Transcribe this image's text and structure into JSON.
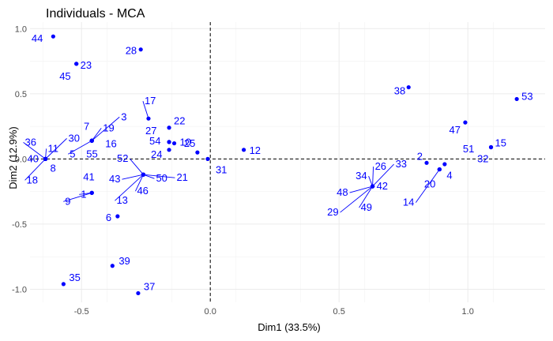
{
  "chart_data": {
    "type": "scatter",
    "title": "Individuals - MCA",
    "xlabel": "Dim1 (33.5%)",
    "ylabel": "Dim2 (12.9%)",
    "xlim": [
      -0.7,
      1.3
    ],
    "ylim": [
      -1.1,
      1.05
    ],
    "xticks": [
      -0.5,
      0.0,
      0.5,
      1.0
    ],
    "xtick_labels": [
      "-0.5",
      "0.0",
      "0.5",
      "1.0"
    ],
    "yticks": [
      -1.0,
      -0.5,
      0.0,
      0.5,
      1.0
    ],
    "ytick_labels": [
      "-1.0",
      "-0.5",
      "0.0",
      "0.5",
      "1.0"
    ],
    "reference_lines": {
      "x": 0,
      "y": 0
    },
    "grid": true,
    "point_color": "#0000ff",
    "points": [
      {
        "label": "44",
        "x": -0.61,
        "y": 0.94
      },
      {
        "label": "45",
        "x": -0.52,
        "y": 0.73
      },
      {
        "label": "23",
        "x": -0.52,
        "y": 0.73
      },
      {
        "label": "28",
        "x": -0.27,
        "y": 0.84
      },
      {
        "label": "38",
        "x": 0.77,
        "y": 0.55
      },
      {
        "label": "53",
        "x": 1.19,
        "y": 0.46
      },
      {
        "label": "47",
        "x": 0.99,
        "y": 0.28
      },
      {
        "label": "15",
        "x": 1.09,
        "y": 0.09
      },
      {
        "label": "32",
        "x": 1.09,
        "y": 0.09
      },
      {
        "label": "51",
        "x": 0.91,
        "y": -0.04
      },
      {
        "label": "2",
        "x": 0.84,
        "y": -0.03
      },
      {
        "label": "4",
        "x": 0.89,
        "y": -0.08
      },
      {
        "label": "20",
        "x": 0.89,
        "y": -0.08
      },
      {
        "label": "14",
        "x": 0.89,
        "y": -0.08
      },
      {
        "label": "26",
        "x": 0.63,
        "y": -0.21
      },
      {
        "label": "33",
        "x": 0.63,
        "y": -0.21
      },
      {
        "label": "34",
        "x": 0.63,
        "y": -0.21
      },
      {
        "label": "42",
        "x": 0.63,
        "y": -0.21
      },
      {
        "label": "48",
        "x": 0.63,
        "y": -0.21
      },
      {
        "label": "49",
        "x": 0.63,
        "y": -0.21
      },
      {
        "label": "29",
        "x": 0.63,
        "y": -0.21
      },
      {
        "label": "12",
        "x": 0.13,
        "y": 0.07
      },
      {
        "label": "25",
        "x": -0.05,
        "y": 0.05
      },
      {
        "label": "31",
        "x": -0.01,
        "y": 0.0
      },
      {
        "label": "17",
        "x": -0.24,
        "y": 0.31
      },
      {
        "label": "22",
        "x": -0.16,
        "y": 0.24
      },
      {
        "label": "27",
        "x": -0.16,
        "y": 0.13
      },
      {
        "label": "54",
        "x": -0.16,
        "y": 0.13
      },
      {
        "label": "10",
        "x": -0.14,
        "y": 0.12
      },
      {
        "label": "24",
        "x": -0.16,
        "y": 0.07
      },
      {
        "label": "21",
        "x": -0.26,
        "y": -0.12
      },
      {
        "label": "52",
        "x": -0.26,
        "y": -0.12
      },
      {
        "label": "50",
        "x": -0.26,
        "y": -0.12
      },
      {
        "label": "43",
        "x": -0.26,
        "y": -0.12
      },
      {
        "label": "46",
        "x": -0.26,
        "y": -0.12
      },
      {
        "label": "13",
        "x": -0.26,
        "y": -0.12
      },
      {
        "label": "3",
        "x": -0.46,
        "y": 0.14
      },
      {
        "label": "19",
        "x": -0.46,
        "y": 0.14
      },
      {
        "label": "7",
        "x": -0.46,
        "y": 0.14
      },
      {
        "label": "16",
        "x": -0.46,
        "y": 0.14
      },
      {
        "label": "55",
        "x": -0.46,
        "y": 0.14
      },
      {
        "label": "5",
        "x": -0.46,
        "y": 0.14
      },
      {
        "label": "36",
        "x": -0.64,
        "y": 0.0
      },
      {
        "label": "11",
        "x": -0.64,
        "y": 0.0
      },
      {
        "label": "30",
        "x": -0.64,
        "y": 0.0
      },
      {
        "label": "40",
        "x": -0.64,
        "y": 0.0
      },
      {
        "label": "8",
        "x": -0.64,
        "y": 0.0
      },
      {
        "label": "18",
        "x": -0.64,
        "y": 0.0
      },
      {
        "label": "41",
        "x": -0.46,
        "y": -0.26
      },
      {
        "label": "1",
        "x": -0.46,
        "y": -0.26
      },
      {
        "label": "9",
        "x": -0.46,
        "y": -0.26
      },
      {
        "label": "6",
        "x": -0.36,
        "y": -0.44
      },
      {
        "label": "39",
        "x": -0.38,
        "y": -0.82
      },
      {
        "label": "35",
        "x": -0.57,
        "y": -0.96
      },
      {
        "label": "37",
        "x": -0.28,
        "y": -1.03
      }
    ]
  }
}
